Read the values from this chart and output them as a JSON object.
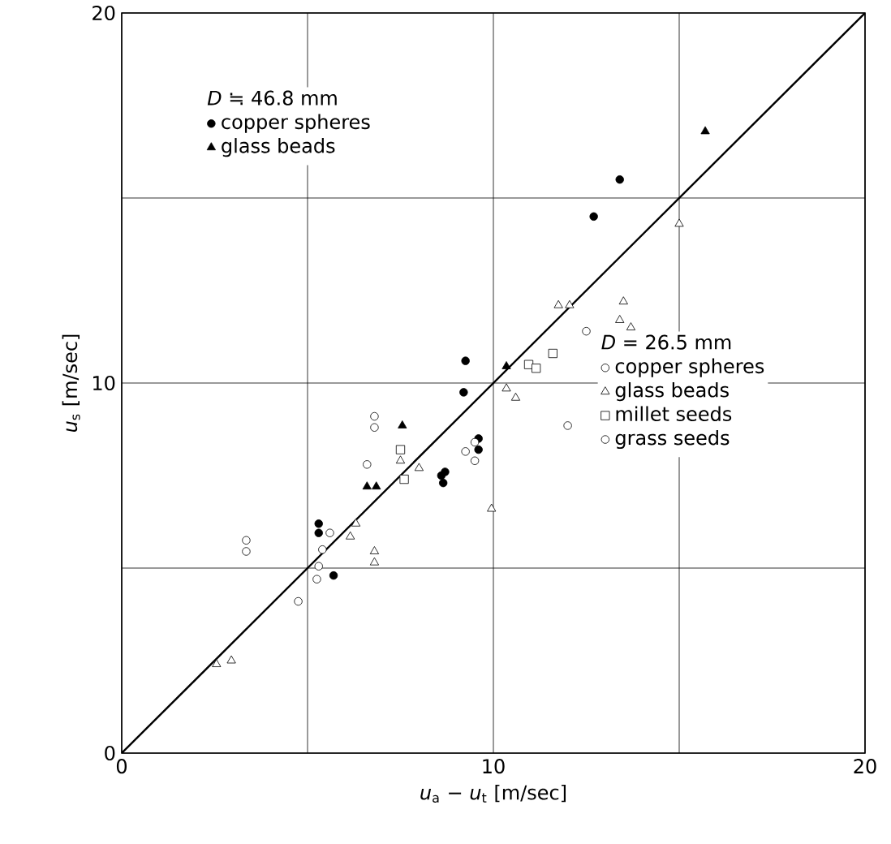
{
  "chart_data": {
    "type": "scatter",
    "xlabel": "*u*$_{a}$ − *u*$_{t}$   [m/sec]",
    "ylabel": "*u*$_{s}$   [m/sec]",
    "xlim": [
      0,
      20
    ],
    "ylim": [
      0,
      20
    ],
    "xticks": [
      0,
      {
        "value": 5,
        "label": null
      },
      10,
      {
        "value": 15,
        "label": null
      },
      20
    ],
    "yticks": [
      0,
      {
        "value": 5,
        "label": null
      },
      10,
      {
        "value": 15,
        "label": null
      },
      20
    ],
    "grid": true,
    "legend": "top left",
    "annotations": [
      "*D* ≒ 46.8 mm",
      "*D* = 26.5 mm"
    ],
    "series": [
      {
        "name": "copper spheres",
        "color": "#000000",
        "marker": "circle",
        "x": [
          13.4,
          12.7,
          9.25,
          9.2,
          8.6,
          8.7,
          8.65,
          9.6,
          9.6,
          5.3,
          5.3,
          5.7
        ],
        "values": [
          15.5,
          14.5,
          10.6,
          9.75,
          7.5,
          7.6,
          7.3,
          8.5,
          8.2,
          6.2,
          5.95,
          4.8
        ]
      },
      {
        "name": "glass beads",
        "color": "#000000",
        "marker": "triangle",
        "x": [
          15.7,
          10.35,
          7.55,
          6.6,
          6.85
        ],
        "values": [
          16.8,
          10.45,
          8.85,
          7.2,
          7.2
        ]
      },
      {
        "name": "copper spheres",
        "color": "#ffffff",
        "marker": "circle",
        "x": [
          12.5,
          12.0,
          9.5,
          9.5,
          5.6,
          5.4,
          5.3,
          5.25,
          4.75
        ],
        "values": [
          11.4,
          8.85,
          8.4,
          7.9,
          5.95,
          5.5,
          5.05,
          4.7,
          4.1
        ]
      },
      {
        "name": "glass beads",
        "color": "#ffffff",
        "marker": "triangle",
        "x": [
          15.0,
          11.75,
          12.05,
          13.5,
          13.4,
          13.7,
          10.35,
          10.6,
          7.5,
          8.0,
          6.3,
          6.15,
          6.8,
          6.8,
          9.95,
          2.55,
          2.95
        ],
        "values": [
          14.3,
          12.1,
          12.1,
          12.2,
          11.7,
          11.5,
          9.85,
          9.6,
          7.9,
          7.7,
          6.2,
          5.85,
          5.45,
          5.15,
          6.6,
          2.4,
          2.5
        ]
      },
      {
        "name": "millet seeds",
        "color": "#ffffff",
        "marker": "square",
        "x": [
          10.95,
          11.15,
          11.6,
          7.5,
          7.6
        ],
        "values": [
          10.5,
          10.4,
          10.8,
          8.2,
          7.4
        ]
      },
      {
        "name": "grass seeds",
        "color": "#ffffff",
        "marker": "circle",
        "x": [
          6.8,
          6.8,
          6.6,
          9.25,
          3.35,
          3.35
        ],
        "values": [
          9.1,
          8.8,
          7.8,
          8.15,
          5.75,
          5.45
        ]
      },
      {
        "type": "line",
        "color": "#000000",
        "marker": "none",
        "x": [
          0,
          20
        ],
        "values": [
          0,
          20
        ]
      }
    ]
  }
}
